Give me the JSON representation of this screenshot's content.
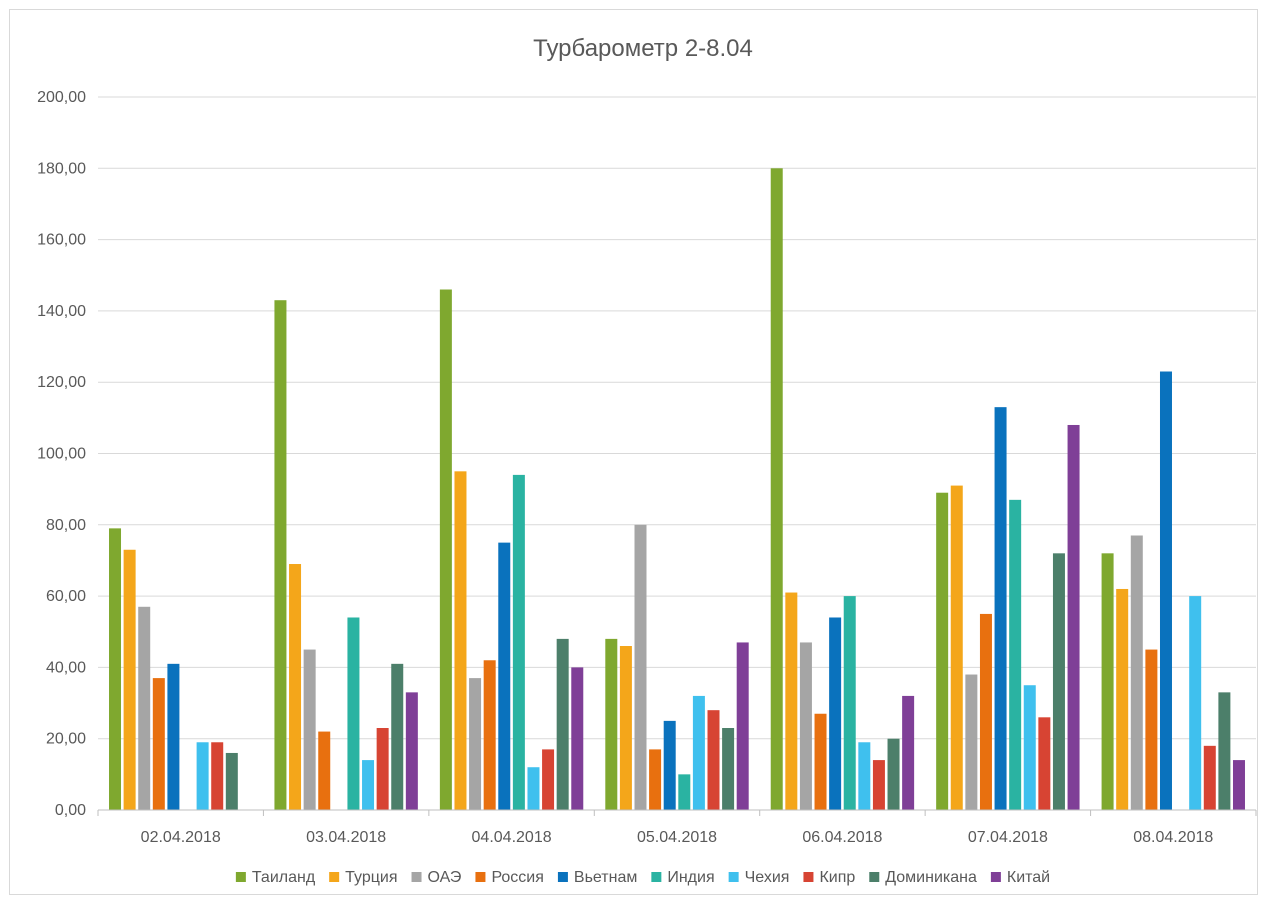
{
  "chart_data": {
    "type": "bar",
    "title": "Турбарометр 2-8.04",
    "xlabel": "",
    "ylabel": "",
    "ylim": [
      0,
      200
    ],
    "yticks": [
      "0,00",
      "20,00",
      "40,00",
      "60,00",
      "80,00",
      "100,00",
      "120,00",
      "140,00",
      "160,00",
      "180,00",
      "200,00"
    ],
    "ytick_step": 20,
    "grid": true,
    "legend_position": "bottom",
    "categories": [
      "02.04.2018",
      "03.04.2018",
      "04.04.2018",
      "05.04.2018",
      "06.04.2018",
      "07.04.2018",
      "08.04.2018"
    ],
    "series": [
      {
        "name": "Таиланд",
        "color": "#7fa82f",
        "values": [
          79,
          143,
          146,
          48,
          180,
          89,
          72
        ]
      },
      {
        "name": "Турция",
        "color": "#f4a61a",
        "values": [
          73,
          69,
          95,
          46,
          61,
          91,
          62
        ]
      },
      {
        "name": "ОАЭ",
        "color": "#a5a5a5",
        "values": [
          57,
          45,
          37,
          80,
          47,
          38,
          77
        ]
      },
      {
        "name": "Россия",
        "color": "#e8700f",
        "values": [
          37,
          22,
          42,
          17,
          27,
          55,
          45
        ]
      },
      {
        "name": "Вьетнам",
        "color": "#0a72bd",
        "values": [
          41,
          null,
          75,
          25,
          54,
          113,
          123
        ]
      },
      {
        "name": "Индия",
        "color": "#2ab3a2",
        "values": [
          null,
          54,
          94,
          10,
          60,
          87,
          null
        ]
      },
      {
        "name": "Чехия",
        "color": "#3fc0ee",
        "values": [
          19,
          14,
          12,
          32,
          19,
          35,
          60
        ]
      },
      {
        "name": "Кипр",
        "color": "#d74433",
        "values": [
          19,
          23,
          17,
          28,
          14,
          26,
          18
        ]
      },
      {
        "name": "Доминикана",
        "color": "#4c7f6a",
        "values": [
          16,
          41,
          48,
          23,
          20,
          72,
          33
        ]
      },
      {
        "name": "Китай",
        "color": "#7f3f97",
        "values": [
          null,
          33,
          40,
          47,
          32,
          108,
          14
        ]
      }
    ]
  }
}
